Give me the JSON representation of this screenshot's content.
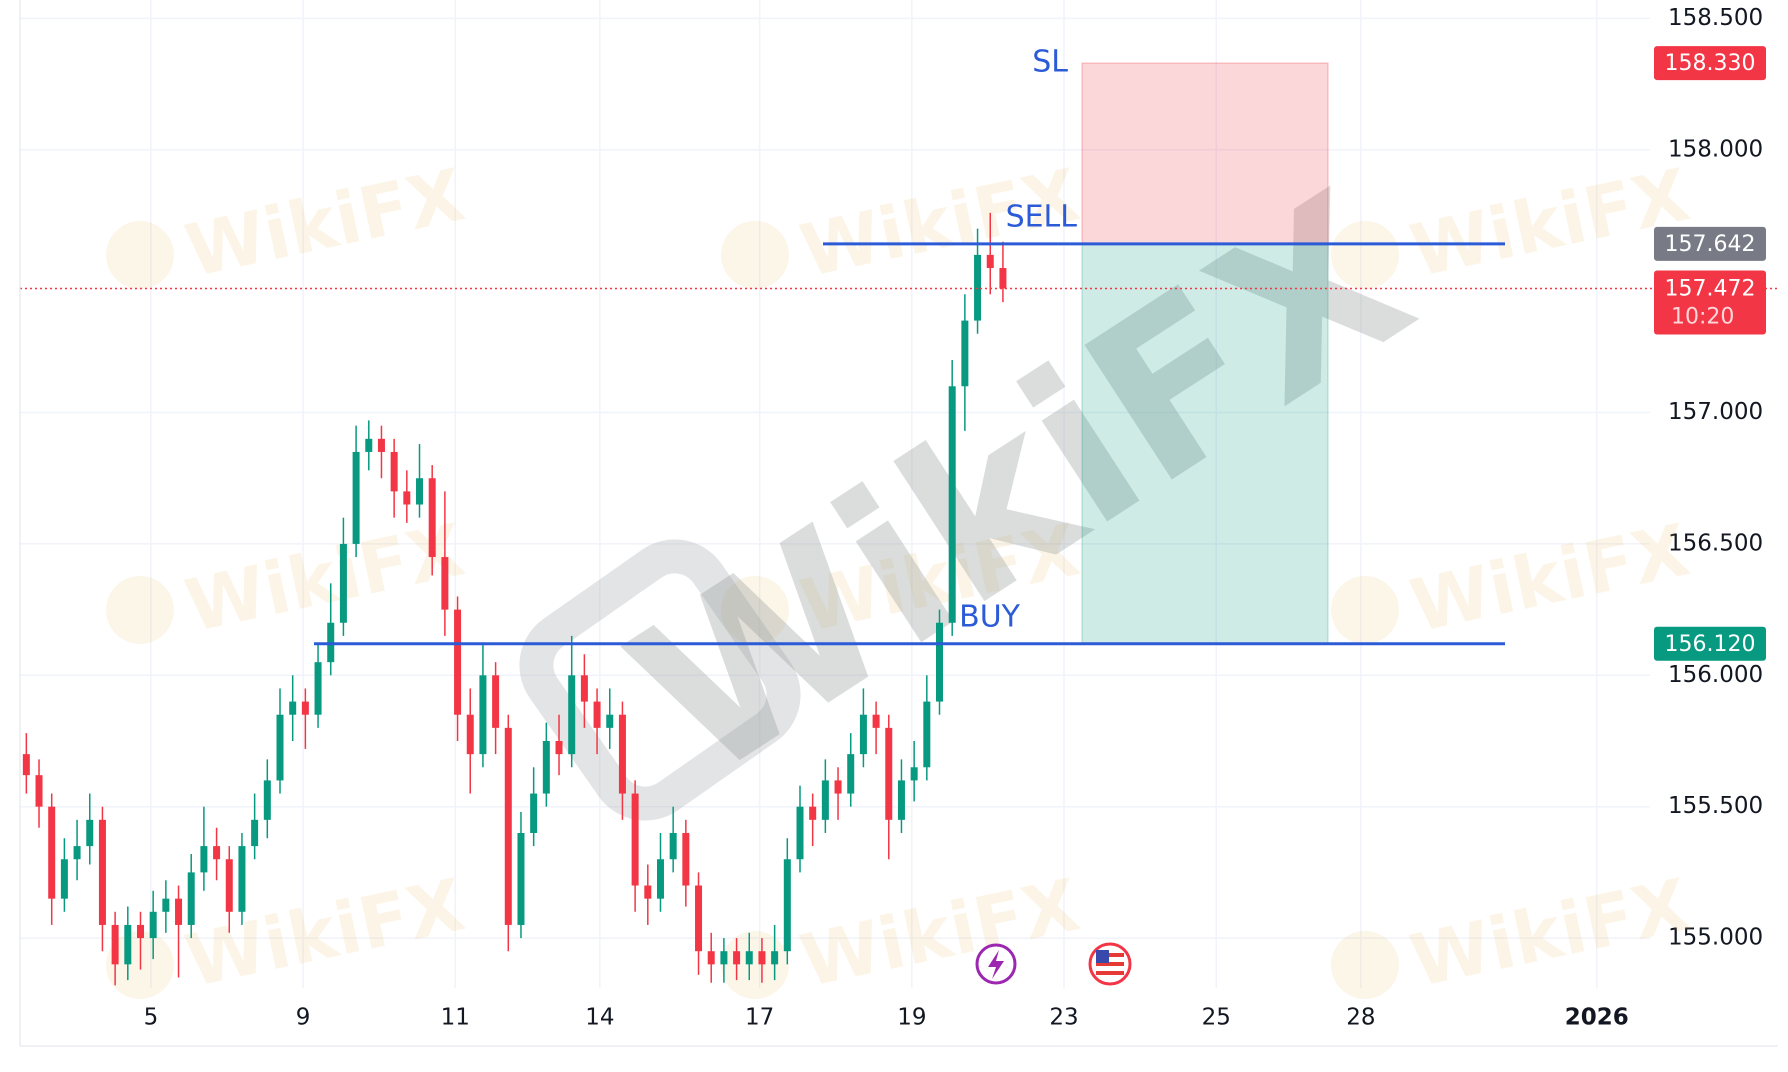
{
  "chart_data": {
    "type": "candlestick",
    "watermark": "WikiFX",
    "ylim": [
      154.81,
      158.57
    ],
    "yticks": [
      {
        "value": 155,
        "label": "155.000"
      },
      {
        "value": 155.5,
        "label": "155.500"
      },
      {
        "value": 156,
        "label": "156.000"
      },
      {
        "value": 156.5,
        "label": "156.500"
      },
      {
        "value": 157,
        "label": "157.000"
      },
      {
        "value": 158,
        "label": "158.000"
      },
      {
        "value": 158.5,
        "label": "158.500"
      }
    ],
    "xlim": [
      -1.72,
      19.7
    ],
    "xticks": [
      {
        "value": 0,
        "label": "5"
      },
      {
        "value": 2,
        "label": "9"
      },
      {
        "value": 4,
        "label": "11"
      },
      {
        "value": 5.9,
        "label": "14"
      },
      {
        "value": 8,
        "label": "17"
      },
      {
        "value": 10,
        "label": "19"
      },
      {
        "value": 12,
        "label": "23"
      },
      {
        "value": 14,
        "label": "25"
      },
      {
        "value": 15.9,
        "label": "28"
      },
      {
        "value": 19,
        "label": "2026"
      }
    ],
    "grid": true,
    "up_color": "#089981",
    "down_color": "#f23645",
    "open": [
      155.7,
      155.62,
      155.5,
      155.15,
      155.3,
      155.35,
      155.45,
      155.05,
      154.9,
      155.05,
      155.0,
      155.1,
      155.15,
      155.05,
      155.25,
      155.35,
      155.3,
      155.1,
      155.35,
      155.45,
      155.6,
      155.85,
      155.9,
      155.85,
      156.05,
      156.2,
      156.5,
      156.85,
      156.9,
      156.85,
      156.7,
      156.65,
      156.75,
      156.45,
      156.25,
      155.85,
      155.7,
      156.0,
      155.8,
      155.05,
      155.4,
      155.55,
      155.75,
      155.7,
      156.0,
      155.9,
      155.8,
      155.85,
      155.55,
      155.2,
      155.15,
      155.3,
      155.4,
      155.2,
      154.95,
      154.9,
      154.95,
      154.9,
      154.95,
      154.9,
      154.95,
      155.3,
      155.5,
      155.45,
      155.6,
      155.55,
      155.7,
      155.85,
      155.8,
      155.45,
      155.6,
      155.65,
      155.9,
      156.2,
      157.1,
      157.35,
      157.6,
      157.55
    ],
    "high": [
      155.78,
      155.68,
      155.55,
      155.38,
      155.45,
      155.55,
      155.5,
      155.1,
      155.12,
      155.1,
      155.18,
      155.22,
      155.2,
      155.32,
      155.5,
      155.42,
      155.35,
      155.4,
      155.55,
      155.68,
      155.95,
      156.0,
      155.95,
      156.12,
      156.35,
      156.6,
      156.95,
      156.97,
      156.95,
      156.9,
      156.78,
      156.88,
      156.8,
      156.7,
      156.3,
      155.95,
      156.12,
      156.05,
      155.85,
      155.48,
      155.65,
      155.82,
      155.85,
      156.15,
      156.08,
      155.95,
      155.95,
      155.9,
      155.6,
      155.28,
      155.4,
      155.5,
      155.45,
      155.25,
      155.02,
      155.0,
      155.0,
      155.02,
      155.0,
      155.05,
      155.38,
      155.58,
      155.55,
      155.68,
      155.65,
      155.78,
      155.95,
      155.9,
      155.85,
      155.68,
      155.75,
      156.0,
      156.25,
      157.2,
      157.45,
      157.7,
      157.76,
      157.65
    ],
    "low": [
      155.55,
      155.42,
      155.05,
      155.1,
      155.22,
      155.28,
      154.95,
      154.82,
      154.84,
      154.88,
      154.92,
      155.02,
      154.85,
      155.0,
      155.18,
      155.22,
      155.02,
      155.05,
      155.3,
      155.38,
      155.55,
      155.75,
      155.72,
      155.8,
      156.0,
      156.15,
      156.45,
      156.78,
      156.75,
      156.6,
      156.58,
      156.6,
      156.38,
      156.15,
      155.75,
      155.55,
      155.65,
      155.7,
      154.95,
      155.0,
      155.35,
      155.5,
      155.62,
      155.65,
      155.8,
      155.7,
      155.72,
      155.45,
      155.1,
      155.05,
      155.1,
      155.25,
      155.12,
      154.86,
      154.83,
      154.83,
      154.84,
      154.84,
      154.83,
      154.84,
      154.9,
      155.25,
      155.35,
      155.4,
      155.45,
      155.5,
      155.65,
      155.7,
      155.3,
      155.4,
      155.52,
      155.6,
      155.85,
      156.15,
      156.93,
      157.3,
      157.45,
      157.42
    ],
    "close": [
      155.62,
      155.5,
      155.15,
      155.3,
      155.35,
      155.45,
      155.05,
      154.9,
      155.05,
      155.0,
      155.1,
      155.15,
      155.05,
      155.25,
      155.35,
      155.3,
      155.1,
      155.35,
      155.45,
      155.6,
      155.85,
      155.9,
      155.85,
      156.05,
      156.2,
      156.5,
      156.85,
      156.9,
      156.85,
      156.7,
      156.65,
      156.75,
      156.45,
      156.25,
      155.85,
      155.7,
      156.0,
      155.8,
      155.05,
      155.4,
      155.55,
      155.75,
      155.7,
      156.0,
      155.9,
      155.8,
      155.85,
      155.55,
      155.2,
      155.15,
      155.3,
      155.4,
      155.2,
      154.95,
      154.9,
      154.95,
      154.9,
      154.95,
      154.9,
      154.95,
      155.3,
      155.5,
      155.45,
      155.6,
      155.55,
      155.7,
      155.85,
      155.8,
      155.45,
      155.6,
      155.65,
      155.9,
      156.2,
      157.1,
      157.35,
      157.6,
      157.55,
      157.472
    ],
    "levels": [
      {
        "name": "SL",
        "price": {
          "value": 158.33,
          "label": "158.330"
        },
        "color": "#f23645"
      },
      {
        "name": "SELL",
        "price": 157.642,
        "color": "#787b86"
      },
      {
        "name": "BUY",
        "price": {
          "value": 156.12,
          "label": "156.120"
        },
        "color": "#089981"
      }
    ],
    "level_line_color": "#2b5bd6",
    "last_price": 157.472,
    "countdown": "10:20"
  }
}
